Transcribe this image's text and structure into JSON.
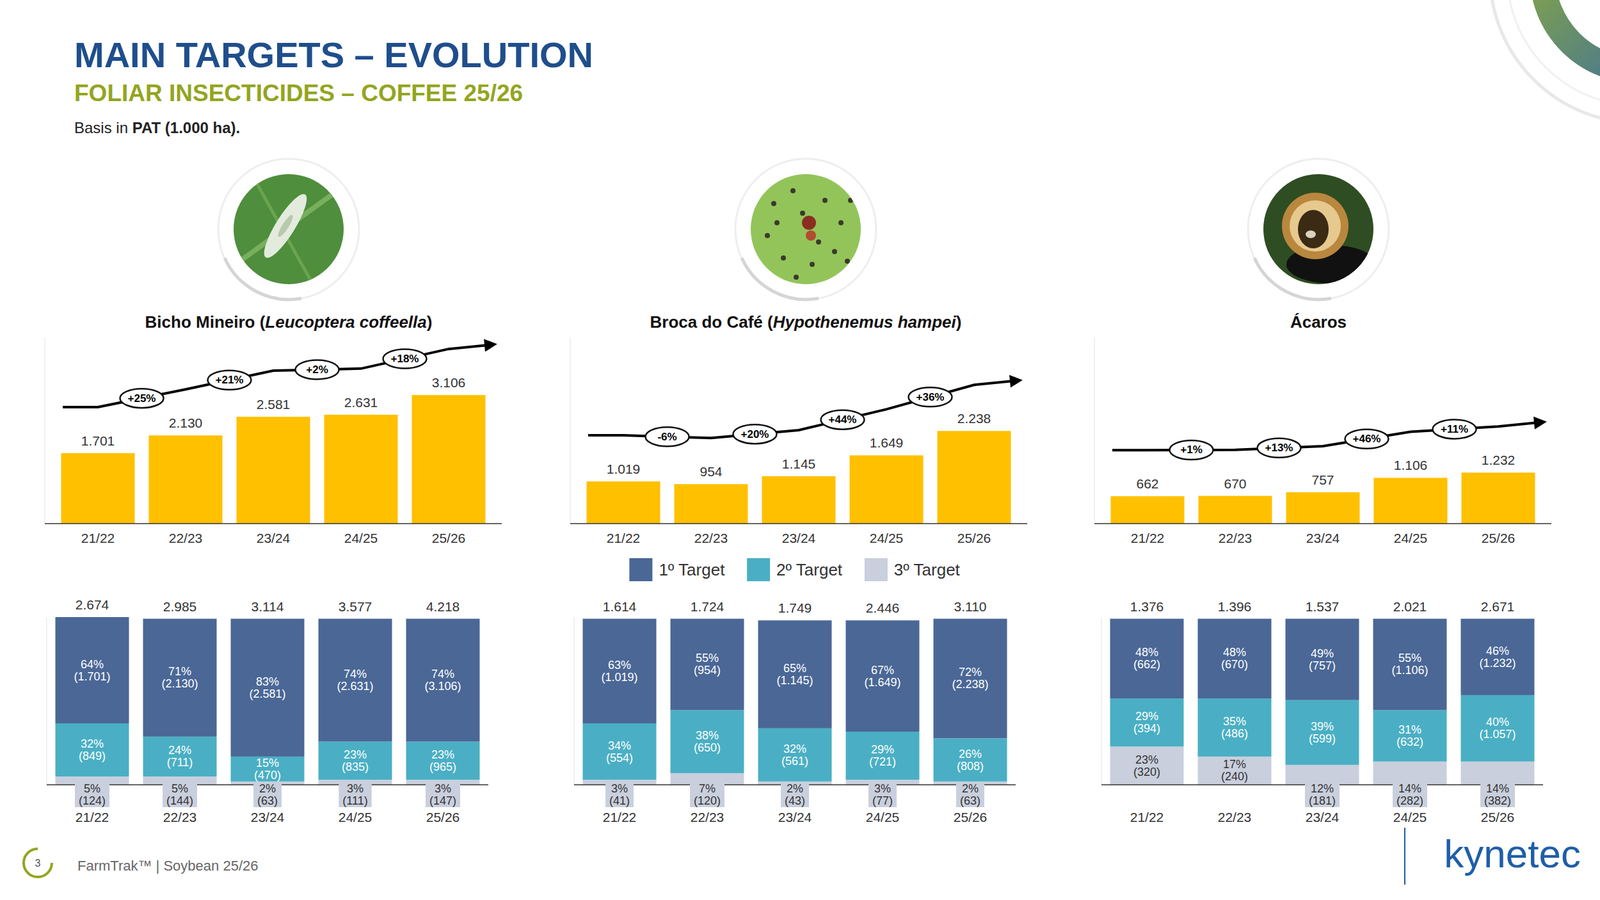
{
  "page": {
    "title": "MAIN TARGETS – EVOLUTION",
    "subtitle": "FOLIAR INSECTICIDES – COFFEE 25/26",
    "basis_prefix": "Basis in ",
    "basis_bold": "PAT (1.000 ha).",
    "page_number": "3",
    "footer": "FarmTrak™ | Soybean 25/26",
    "logo": "kynetec"
  },
  "chart_data": [
    {
      "type": "bar",
      "title": "Bicho Mineiro (Leucoptera coffeella)",
      "categories": [
        "21/22",
        "22/23",
        "23/24",
        "24/25",
        "25/26"
      ],
      "values": [
        1701,
        2130,
        2581,
        2631,
        3106
      ],
      "value_labels": [
        "1.701",
        "2.130",
        "2.581",
        "2.631",
        "3.106"
      ],
      "color": "#FFC000",
      "ylim": [
        0,
        4500
      ],
      "data_labels": true,
      "tick_labels": "x",
      "annotations": [
        "+25%",
        "+21%",
        "+2%",
        "+18%"
      ]
    },
    {
      "type": "bar",
      "title": "Broca do Café (Hypothenemus hampei)",
      "categories": [
        "21/22",
        "22/23",
        "23/24",
        "24/25",
        "25/26"
      ],
      "values": [
        1019,
        954,
        1145,
        1649,
        2238
      ],
      "value_labels": [
        "1.019",
        "954",
        "1.145",
        "1.649",
        "2.238"
      ],
      "color": "#FFC000",
      "ylim": [
        0,
        4500
      ],
      "data_labels": true,
      "tick_labels": "x",
      "annotations": [
        "-6%",
        "+20%",
        "+44%",
        "+36%"
      ]
    },
    {
      "type": "bar",
      "title": "Ácaros",
      "categories": [
        "21/22",
        "22/23",
        "23/24",
        "24/25",
        "25/26"
      ],
      "values": [
        662,
        670,
        757,
        1106,
        1232
      ],
      "value_labels": [
        "662",
        "670",
        "757",
        "1.106",
        "1.232"
      ],
      "color": "#FFC000",
      "ylim": [
        0,
        4500
      ],
      "data_labels": true,
      "tick_labels": "x",
      "annotations": [
        "+1%",
        "+13%",
        "+46%",
        "+11%"
      ]
    },
    {
      "type": "bar",
      "stacked": true,
      "categories": [
        "21/22",
        "22/23",
        "23/24",
        "24/25",
        "25/26"
      ],
      "series": [
        {
          "color": "#4A6796",
          "values": [
            64,
            71,
            83,
            74,
            74
          ],
          "value_labels": [
            "64%",
            "71%",
            "83%",
            "74%",
            "74%"
          ],
          "counts": [
            1701,
            2130,
            2581,
            2631,
            3106
          ],
          "count_labels": [
            "(1.701)",
            "(2.130)",
            "(2.581)",
            "(2.631)",
            "(3.106)"
          ]
        },
        {
          "color": "#4AAFC4",
          "values": [
            32,
            24,
            15,
            23,
            23
          ],
          "value_labels": [
            "32%",
            "24%",
            "15%",
            "23%",
            "23%"
          ],
          "counts": [
            849,
            711,
            470,
            835,
            965
          ],
          "count_labels": [
            "(849)",
            "(711)",
            "(470)",
            "(835)",
            "(965)"
          ]
        },
        {
          "color": "#C9CFDD",
          "values": [
            5,
            5,
            2,
            3,
            3
          ],
          "value_labels": [
            "5%",
            "5%",
            "2%",
            "3%",
            "3%"
          ],
          "counts": [
            124,
            144,
            63,
            111,
            147
          ],
          "count_labels": [
            "(124)",
            "(144)",
            "(63)",
            "(111)",
            "(147)"
          ]
        }
      ],
      "totals": [
        2674,
        2985,
        3114,
        3577,
        4218
      ],
      "total_labels": [
        "2.674",
        "2.985",
        "3.114",
        "3.577",
        "4.218"
      ],
      "ylim": [
        0,
        101
      ],
      "data_labels": true,
      "tick_labels": "x"
    },
    {
      "type": "bar",
      "stacked": true,
      "legend": "top",
      "categories": [
        "21/22",
        "22/23",
        "23/24",
        "24/25",
        "25/26"
      ],
      "series": [
        {
          "name": "1º Target",
          "color": "#4A6796",
          "values": [
            63,
            55,
            65,
            67,
            72
          ],
          "value_labels": [
            "63%",
            "55%",
            "65%",
            "67%",
            "72%"
          ],
          "counts": [
            1019,
            954,
            1145,
            1649,
            2238
          ],
          "count_labels": [
            "(1.019)",
            "(954)",
            "(1.145)",
            "(1.649)",
            "(2.238)"
          ]
        },
        {
          "name": "2º Target",
          "color": "#4AAFC4",
          "values": [
            34,
            38,
            32,
            29,
            26
          ],
          "value_labels": [
            "34%",
            "38%",
            "32%",
            "29%",
            "26%"
          ],
          "counts": [
            554,
            650,
            561,
            721,
            808
          ],
          "count_labels": [
            "(554)",
            "(650)",
            "(561)",
            "(721)",
            "(808)"
          ]
        },
        {
          "name": "3º Target",
          "color": "#C9CFDD",
          "values": [
            3,
            7,
            2,
            3,
            2
          ],
          "value_labels": [
            "3%",
            "7%",
            "2%",
            "3%",
            "2%"
          ],
          "counts": [
            41,
            120,
            43,
            77,
            63
          ],
          "count_labels": [
            "(41)",
            "(120)",
            "(43)",
            "(77)",
            "(63)"
          ]
        }
      ],
      "totals": [
        1614,
        1724,
        1749,
        2446,
        3110
      ],
      "total_labels": [
        "1.614",
        "1.724",
        "1.749",
        "2.446",
        "3.110"
      ],
      "ylim": [
        0,
        101
      ],
      "data_labels": true,
      "tick_labels": "x"
    },
    {
      "type": "bar",
      "stacked": true,
      "categories": [
        "21/22",
        "22/23",
        "23/24",
        "24/25",
        "25/26"
      ],
      "series": [
        {
          "color": "#4A6796",
          "values": [
            48,
            48,
            49,
            55,
            46
          ],
          "value_labels": [
            "48%",
            "48%",
            "49%",
            "55%",
            "46%"
          ],
          "counts": [
            662,
            670,
            757,
            1106,
            1232
          ],
          "count_labels": [
            "(662)",
            "(670)",
            "(757)",
            "(1.106)",
            "(1.232)"
          ]
        },
        {
          "color": "#4AAFC4",
          "values": [
            29,
            35,
            39,
            31,
            40
          ],
          "value_labels": [
            "29%",
            "35%",
            "39%",
            "31%",
            "40%"
          ],
          "counts": [
            394,
            486,
            599,
            632,
            1057
          ],
          "count_labels": [
            "(394)",
            "(486)",
            "(599)",
            "(632)",
            "(1.057)"
          ]
        },
        {
          "color": "#C9CFDD",
          "values": [
            23,
            17,
            12,
            14,
            14
          ],
          "value_labels": [
            "23%",
            "17%",
            "12%",
            "14%",
            "14%"
          ],
          "counts": [
            320,
            240,
            181,
            282,
            382
          ],
          "count_labels": [
            "(320)",
            "(240)",
            "(181)",
            "(282)",
            "(382)"
          ]
        }
      ],
      "totals": [
        1376,
        1396,
        1537,
        2021,
        2671
      ],
      "total_labels": [
        "1.376",
        "1.396",
        "1.537",
        "2.021",
        "2.671"
      ],
      "ylim": [
        0,
        101
      ],
      "data_labels": true,
      "tick_labels": "x"
    }
  ]
}
